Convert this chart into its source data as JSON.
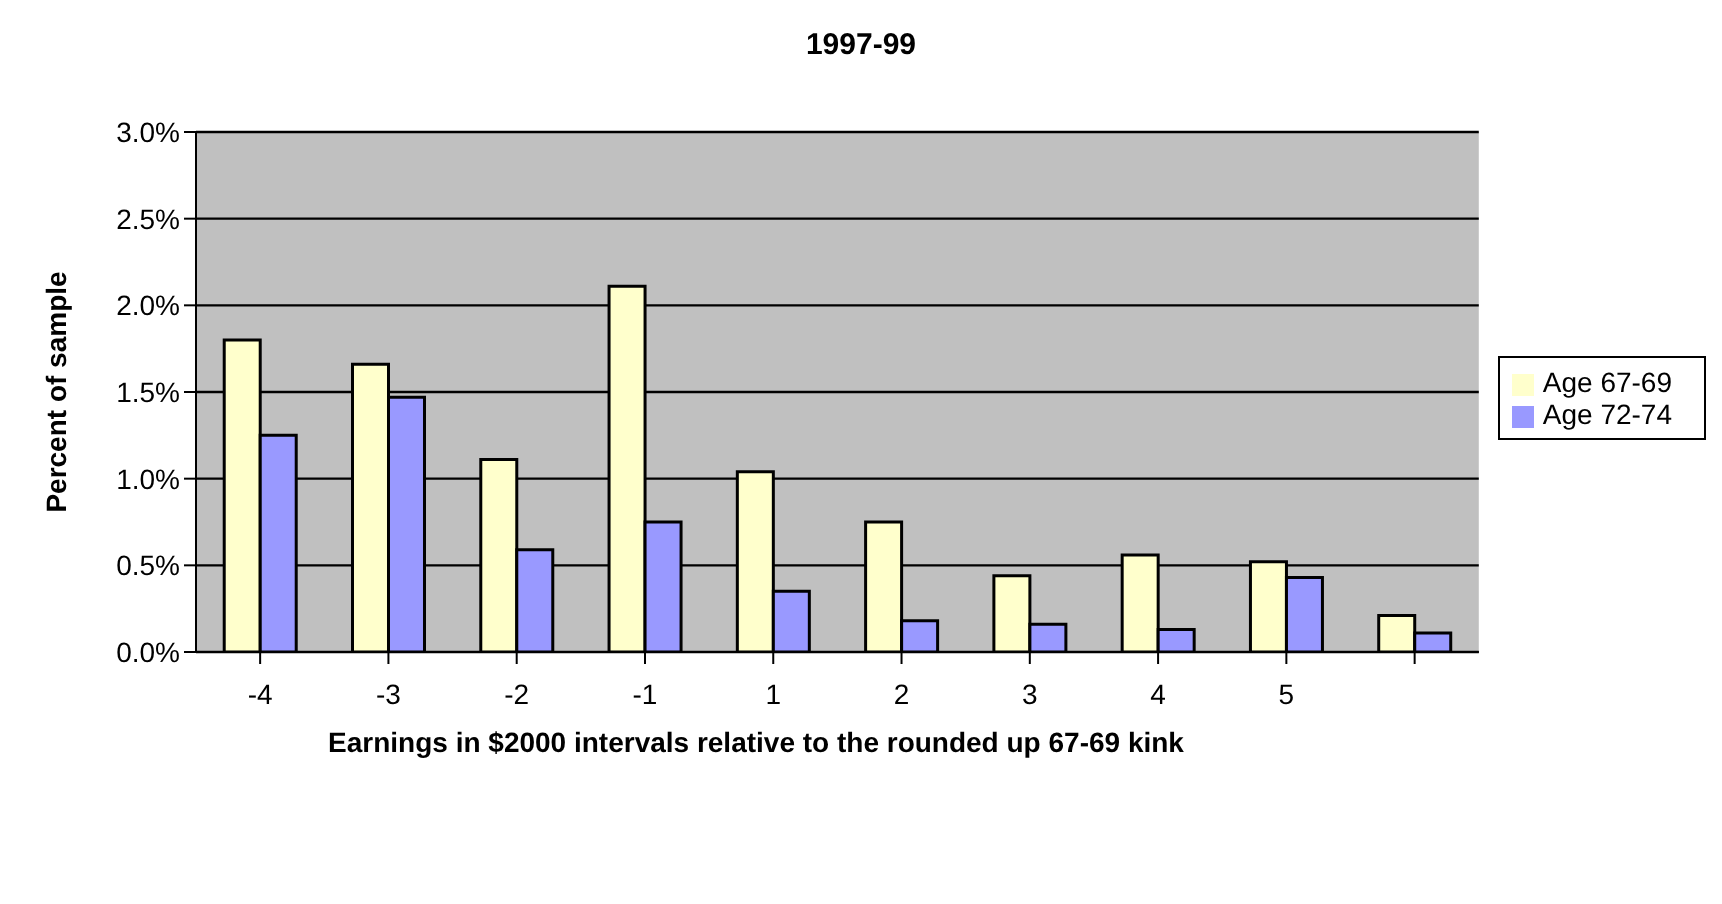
{
  "chart_data": {
    "type": "bar",
    "title": "1997-99",
    "xlabel": "Earnings in $2000 intervals relative to the rounded up 67-69 kink",
    "ylabel": "Percent of sample",
    "categories": [
      "-4",
      "-3",
      "-2",
      "-1",
      "1",
      "2",
      "3",
      "4",
      "5",
      null
    ],
    "series": [
      {
        "name": "Age 67-69",
        "color": "#ffffcc",
        "values": [
          1.8,
          1.66,
          1.11,
          2.11,
          1.04,
          0.75,
          0.44,
          0.56,
          0.52,
          0.21
        ]
      },
      {
        "name": "Age 72-74",
        "color": "#9999ff",
        "values": [
          1.25,
          1.47,
          0.59,
          0.75,
          0.35,
          0.18,
          0.16,
          0.13,
          0.43,
          0.11
        ]
      }
    ],
    "ylim": [
      0,
      3
    ],
    "yticks": [
      {
        "value": 0,
        "label": "0.0%"
      },
      {
        "value": 0.5,
        "label": "0.5%"
      },
      {
        "value": 1,
        "label": "1.0%"
      },
      {
        "value": 1.5,
        "label": "1.5%"
      },
      {
        "value": 2,
        "label": "2.0%"
      },
      {
        "value": 2.5,
        "label": "2.5%"
      },
      {
        "value": 3,
        "label": "3.0%"
      }
    ],
    "grid": "y",
    "legend": "right"
  }
}
